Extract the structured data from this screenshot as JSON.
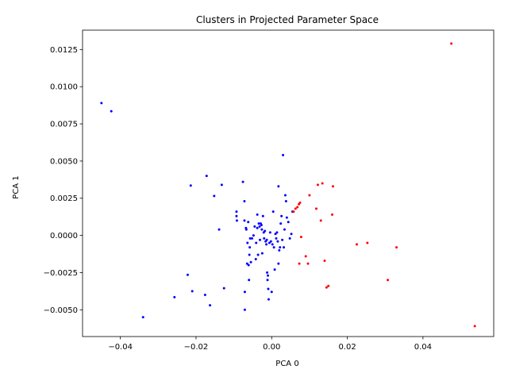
{
  "chart_data": {
    "type": "scatter",
    "title": "Clusters in Projected Parameter Space",
    "xlabel": "PCA 0",
    "ylabel": "PCA 1",
    "xlim": [
      -0.05,
      0.0587
    ],
    "ylim": [
      -0.0068,
      0.0138
    ],
    "xticks": [
      -0.04,
      -0.02,
      0.0,
      0.02,
      0.04
    ],
    "xtick_labels": [
      "−0.04",
      "−0.02",
      "0.00",
      "0.02",
      "0.04"
    ],
    "yticks": [
      -0.005,
      -0.0025,
      0.0,
      0.0025,
      0.005,
      0.0075,
      0.01,
      0.0125
    ],
    "ytick_labels": [
      "−0.0050",
      "−0.0025",
      "0.0000",
      "0.0025",
      "0.0050",
      "0.0075",
      "0.0100",
      "0.0125"
    ],
    "grid": false,
    "series": [
      {
        "color": "#0000ff",
        "points": [
          [
            -0.045,
            0.0089
          ],
          [
            -0.0424,
            0.00835
          ],
          [
            -0.034,
            -0.0055
          ],
          [
            -0.0257,
            -0.00415
          ],
          [
            -0.0222,
            -0.00265
          ],
          [
            -0.0214,
            0.00335
          ],
          [
            -0.021,
            -0.00375
          ],
          [
            -0.0176,
            -0.004
          ],
          [
            -0.0172,
            0.004
          ],
          [
            -0.0163,
            -0.0047
          ],
          [
            -0.0152,
            0.00265
          ],
          [
            -0.0139,
            0.0004
          ],
          [
            -0.0132,
            0.0034
          ],
          [
            -0.0126,
            -0.00355
          ],
          [
            -0.0093,
            0.0013
          ],
          [
            -0.0093,
            0.0016
          ],
          [
            -0.0092,
            0.001
          ],
          [
            -0.0076,
            0.0036
          ],
          [
            -0.0072,
            0.0023
          ],
          [
            -0.0072,
            0.001
          ],
          [
            -0.0071,
            -0.0038
          ],
          [
            -0.0071,
            -0.005
          ],
          [
            -0.0068,
            0.0005
          ],
          [
            -0.0067,
            0.0004
          ],
          [
            -0.0065,
            -0.0019
          ],
          [
            -0.0064,
            -0.0005
          ],
          [
            -0.0062,
            0.0009
          ],
          [
            -0.0061,
            -0.002
          ],
          [
            -0.006,
            -0.003
          ],
          [
            -0.0059,
            -0.0013
          ],
          [
            -0.0058,
            -0.0008
          ],
          [
            -0.0057,
            -0.0002
          ],
          [
            -0.0055,
            -0.0018
          ],
          [
            -0.0052,
            -0.0002
          ],
          [
            -0.0048,
            0.0
          ],
          [
            -0.0045,
            0.0006
          ],
          [
            -0.0042,
            -0.0016
          ],
          [
            -0.0041,
            -0.0005
          ],
          [
            -0.0038,
            0.0014
          ],
          [
            -0.0038,
            0.0005
          ],
          [
            -0.0036,
            -0.0013
          ],
          [
            -0.0034,
            0.0008
          ],
          [
            -0.0032,
            0.0006
          ],
          [
            -0.0031,
            -0.0003
          ],
          [
            -0.0029,
            0.0008
          ],
          [
            -0.0027,
            0.0007
          ],
          [
            -0.0026,
            0.0004
          ],
          [
            -0.0025,
            -0.0012
          ],
          [
            -0.0023,
            0.0013
          ],
          [
            -0.0021,
            0.0002
          ],
          [
            -0.002,
            -0.0002
          ],
          [
            -0.0018,
            0.0003
          ],
          [
            -0.0016,
            -0.0004
          ],
          [
            -0.0014,
            -0.0006
          ],
          [
            -0.0013,
            -0.0003
          ],
          [
            -0.0012,
            -0.0025
          ],
          [
            -0.0011,
            -0.003
          ],
          [
            -0.001,
            -0.0027
          ],
          [
            -0.0009,
            -0.0036
          ],
          [
            -0.0008,
            -0.0043
          ],
          [
            -0.0006,
            -0.0005
          ],
          [
            -0.0004,
            0.0002
          ],
          [
            -0.0002,
            -0.0004
          ],
          [
            0.0,
            -0.0038
          ],
          [
            0.0002,
            -0.0006
          ],
          [
            0.0004,
            0.0016
          ],
          [
            0.0006,
            -0.0008
          ],
          [
            0.0008,
            -0.0023
          ],
          [
            0.001,
            0.0001
          ],
          [
            0.0012,
            -0.0002
          ],
          [
            0.0014,
            0.0002
          ],
          [
            0.0016,
            -0.0004
          ],
          [
            0.0018,
            0.0033
          ],
          [
            0.0018,
            -0.0019
          ],
          [
            0.002,
            -0.001
          ],
          [
            0.0022,
            -0.0008
          ],
          [
            0.0024,
            0.0008
          ],
          [
            0.0026,
            0.0013
          ],
          [
            0.0028,
            -0.0003
          ],
          [
            0.003,
            0.0054
          ],
          [
            0.0032,
            -0.0008
          ],
          [
            0.0034,
            0.0004
          ],
          [
            0.0036,
            0.0027
          ],
          [
            0.0038,
            0.0023
          ],
          [
            0.004,
            0.0012
          ],
          [
            0.0044,
            0.0009
          ],
          [
            0.0048,
            -0.0002
          ],
          [
            0.0052,
            0.0001
          ],
          [
            0.0055,
            0.0016
          ]
        ]
      },
      {
        "color": "#ff0000",
        "points": [
          [
            0.0058,
            0.0016
          ],
          [
            0.0063,
            0.0018
          ],
          [
            0.0068,
            0.0019
          ],
          [
            0.0072,
            0.0021
          ],
          [
            0.0075,
            0.0022
          ],
          [
            0.0073,
            -0.0019
          ],
          [
            0.0078,
            -0.0001
          ],
          [
            0.009,
            -0.0014
          ],
          [
            0.0096,
            -0.0019
          ],
          [
            0.01,
            0.0027
          ],
          [
            0.0118,
            0.0018
          ],
          [
            0.0122,
            0.0034
          ],
          [
            0.013,
            0.001
          ],
          [
            0.0134,
            0.0035
          ],
          [
            0.014,
            -0.0017
          ],
          [
            0.0145,
            -0.0035
          ],
          [
            0.015,
            -0.0034
          ],
          [
            0.016,
            0.0014
          ],
          [
            0.0162,
            0.0033
          ],
          [
            0.0225,
            -0.0006
          ],
          [
            0.0253,
            -0.0005
          ],
          [
            0.0307,
            -0.003
          ],
          [
            0.033,
            -0.0008
          ],
          [
            0.0475,
            0.0129
          ],
          [
            0.0537,
            -0.0061
          ]
        ]
      }
    ]
  }
}
